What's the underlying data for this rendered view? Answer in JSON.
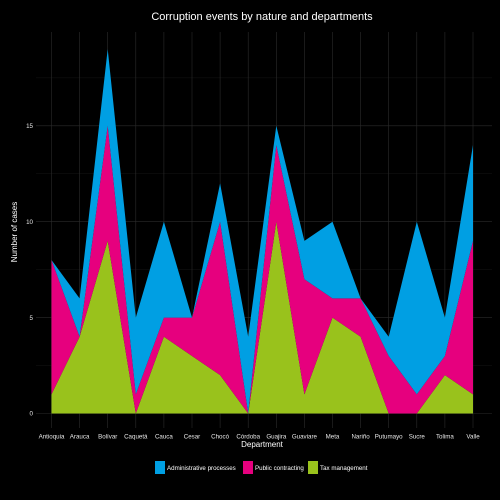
{
  "chart_data": {
    "type": "area",
    "title": "Corruption events by nature and departments",
    "xlabel": "Department",
    "ylabel": "Number of cases",
    "categories": [
      "Antioquia",
      "Arauca",
      "Bolívar",
      "Caquetá",
      "Cauca",
      "Cesar",
      "Chocó",
      "Córdoba",
      "Guajira",
      "Guaviare",
      "Meta",
      "Nariño",
      "Putumayo",
      "Sucre",
      "Tolima",
      "Valle"
    ],
    "stacked": true,
    "series": [
      {
        "name": "Tax management",
        "color": "#99c21c",
        "values": [
          1,
          4,
          9,
          0,
          4,
          3,
          2,
          0,
          10,
          1,
          5,
          4,
          0,
          0,
          2,
          1
        ]
      },
      {
        "name": "Public contracting",
        "color": "#e6007e",
        "values": [
          7,
          0,
          6,
          1,
          1,
          2,
          8,
          0,
          4,
          6,
          1,
          2,
          3,
          1,
          1,
          8
        ]
      },
      {
        "name": "Administrative processes",
        "color": "#009fe3",
        "values": [
          0,
          2,
          4,
          4,
          5,
          0,
          2,
          4,
          1,
          2,
          4,
          0,
          1,
          9,
          2,
          5
        ]
      }
    ],
    "ylim": [
      0,
      20
    ],
    "yticks": [
      0,
      5,
      10,
      15
    ],
    "grid": true,
    "legend": {
      "position": "bottom",
      "entries": [
        "Administrative processes",
        "Public contracting",
        "Tax management"
      ]
    }
  }
}
